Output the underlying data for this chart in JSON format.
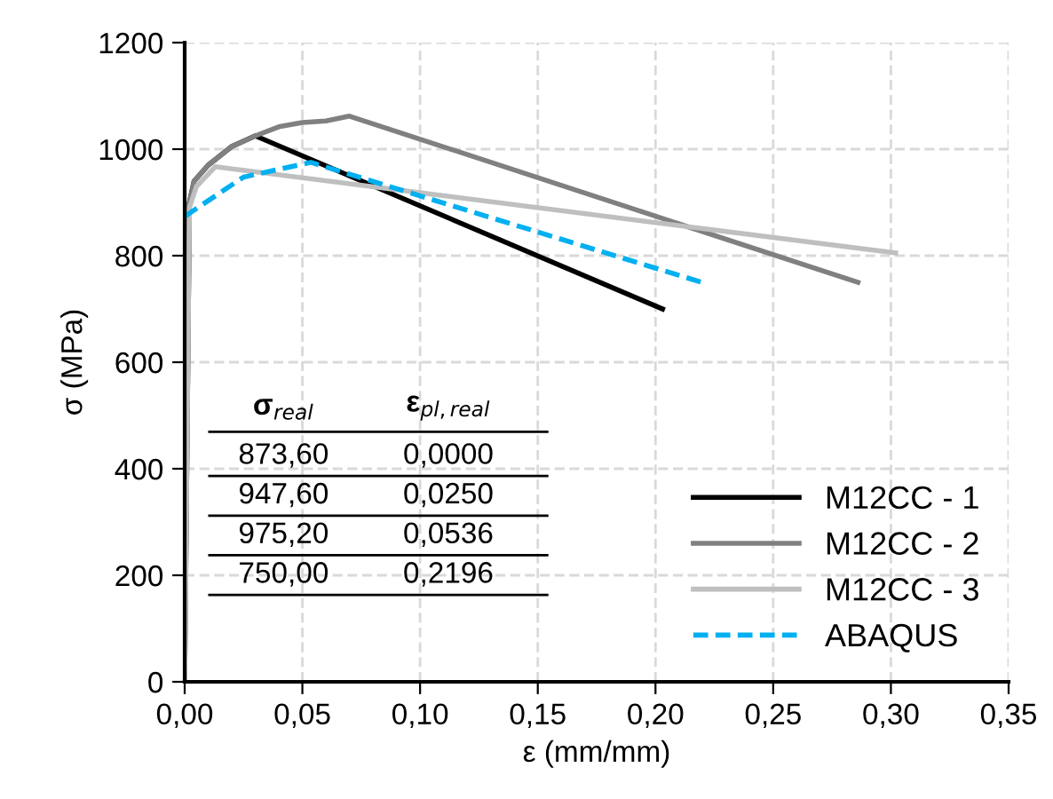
{
  "chart_data": {
    "type": "line",
    "xlabel": "ε (mm/mm)",
    "ylabel": "σ (MPa)",
    "series": [
      {
        "name": "M12CC - 1",
        "color": "#000000",
        "x": [
          0,
          0.002,
          0.004,
          0.01,
          0.02,
          0.03,
          0.203
        ],
        "values": [
          0,
          900,
          940,
          970,
          1005,
          1025,
          700
        ]
      },
      {
        "name": "M12CC - 2",
        "color": "#808080",
        "x": [
          0,
          0.002,
          0.004,
          0.01,
          0.02,
          0.03,
          0.04,
          0.05,
          0.06,
          0.07,
          0.286
        ],
        "values": [
          0,
          900,
          940,
          970,
          1005,
          1025,
          1042,
          1050,
          1053,
          1062,
          750
        ]
      },
      {
        "name": "M12CC - 3",
        "color": "#bfbfbf",
        "x": [
          0,
          0.002,
          0.005,
          0.013,
          0.302
        ],
        "values": [
          0,
          890,
          930,
          967,
          805
        ]
      },
      {
        "name": "ABAQUS",
        "color": "#00b0f0",
        "line_style": "dashed",
        "x": [
          0,
          0.025,
          0.0536,
          0.2196
        ],
        "values": [
          873.6,
          947.6,
          975.2,
          750
        ]
      }
    ],
    "xlim": [
      0,
      0.35
    ],
    "ylim": [
      0,
      1200
    ],
    "xticks": [
      {
        "value": 0,
        "label": "0,00"
      },
      {
        "value": 0.05,
        "label": "0,05"
      },
      {
        "value": 0.1,
        "label": "0,10"
      },
      {
        "value": 0.15,
        "label": "0,15"
      },
      {
        "value": 0.2,
        "label": "0,20"
      },
      {
        "value": 0.25,
        "label": "0,25"
      },
      {
        "value": 0.3,
        "label": "0,30"
      },
      {
        "value": 0.35,
        "label": "0,35"
      }
    ],
    "yticks": [
      0,
      200,
      400,
      600,
      800,
      1000,
      1200
    ],
    "grid": true,
    "legend": "bottom right",
    "line_style": "solid",
    "marker": "none",
    "annotations": [
      "σ$_{real}$",
      "ε$_{pl,real}$",
      "873,60",
      "0,0000",
      "947,60",
      "0,0250",
      "975,20",
      "0,0536",
      "750,00",
      "0,2196"
    ]
  }
}
